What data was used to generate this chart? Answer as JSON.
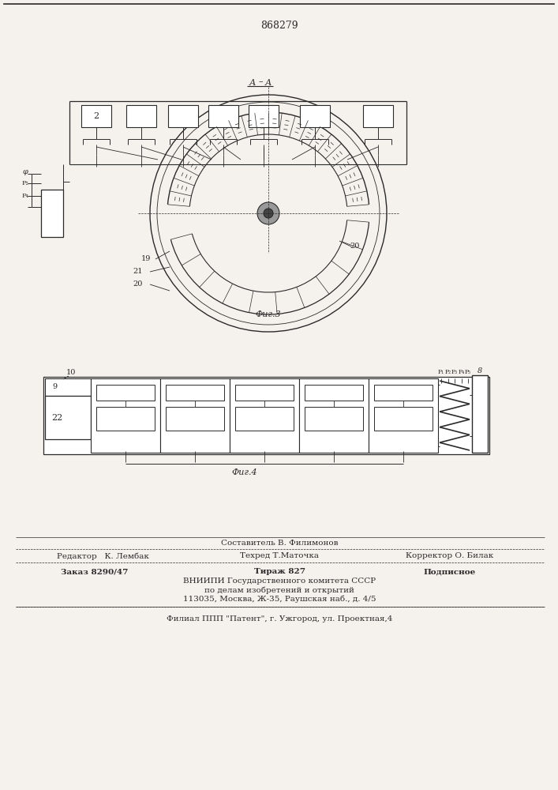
{
  "patent_number": "868279",
  "footer": {
    "line1_center": "Составитель В. Филимонов",
    "line2_left": "Редактор   К. Лембак",
    "line2_center": "Техред Т.Маточка",
    "line2_right": "Корректор О. Билак",
    "line3_left": "Заказ 8290/47",
    "line3_center": "Тираж 827",
    "line3_right": "Подписное",
    "line4": "ВНИИПИ Государственного комитета СССР",
    "line5": "по делам изобретений и открытий",
    "line6": "113035, Москва, Ж-35, Раушская наб., д. 4/5",
    "line7": "Филиал ППП \"Патент\", г. Ужгород, ул. Проектная,4"
  },
  "bg_color": "#f5f2ed",
  "line_color": "#2a2a2a"
}
